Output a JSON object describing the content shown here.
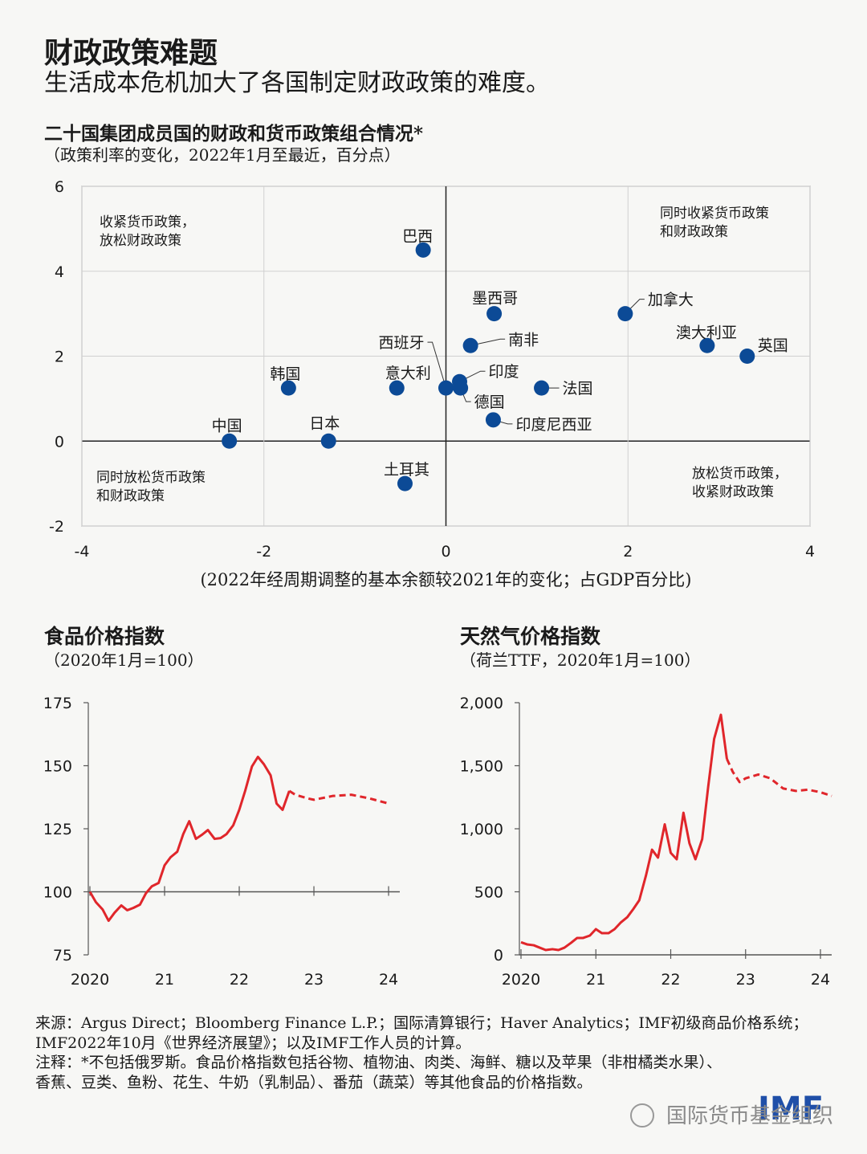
{
  "header": {
    "title": "财政政策难题",
    "subtitle": "生活成本危机加大了各国制定财政政策的难度。"
  },
  "chart_data": [
    {
      "type": "scatter",
      "title": "二十国集团成员国的财政和货币政策组合情况*",
      "subtitle": "（政策利率的变化，2022年1月至最近，百分点）",
      "x_label": "(2022年经周期调整的基本余额较2021年的变化；占GDP百分比)",
      "labels": [
        "巴西",
        "墨西哥",
        "加拿大",
        "南非",
        "澳大利亚",
        "英国",
        "西班牙",
        "意大利",
        "印度",
        "德国",
        "法国",
        "印度尼西亚",
        "韩国",
        "中国",
        "日本",
        "土耳其"
      ],
      "x": [
        -0.25,
        0.53,
        1.97,
        0.27,
        2.87,
        3.31,
        0,
        -0.54,
        0.15,
        0.16,
        1.05,
        0.52,
        -1.73,
        -2.38,
        -1.29,
        -0.45
      ],
      "values": [
        4.5,
        3.0,
        3.0,
        2.25,
        2.25,
        2.0,
        1.25,
        1.25,
        1.4,
        1.25,
        1.25,
        0.5,
        1.25,
        0,
        0,
        -1
      ],
      "color": "#0c4a96",
      "xlim": [
        -4,
        4
      ],
      "ylim": [
        -2,
        6
      ],
      "xticks": [
        -4,
        -2,
        0,
        2,
        4
      ],
      "yticks": [
        -2,
        0,
        2,
        4,
        6
      ],
      "grid": true,
      "quadrant_labels": [
        {
          "corner": "top-left",
          "lines": [
            "收紧货币政策，",
            "放松财政政策"
          ]
        },
        {
          "corner": "top-right",
          "lines": [
            "同时收紧货币政策",
            "和财政政策"
          ]
        },
        {
          "corner": "bottom-left",
          "lines": [
            "同时放松货币政策",
            "和财政政策"
          ]
        },
        {
          "corner": "bottom-right",
          "lines": [
            "放松货币政策，",
            "收紧财政政策"
          ]
        }
      ]
    },
    {
      "type": "line",
      "title": "食品价格指数",
      "subtitle": "（2020年1月=100）",
      "xlim": [
        2020,
        2024.15
      ],
      "ylim": [
        75,
        175
      ],
      "baseline": 100,
      "xticks": [
        2020,
        {
          "value": 2021,
          "label": "21"
        },
        {
          "value": 2022,
          "label": "22"
        },
        {
          "value": 2023,
          "label": "23"
        },
        {
          "value": 2024,
          "label": "24"
        }
      ],
      "yticks": [
        75,
        100,
        125,
        150,
        175
      ],
      "series": [
        {
          "color": "#e0262b",
          "style": "solid",
          "x": [
            2020,
            2020.08,
            2020.17,
            2020.25,
            2020.33,
            2020.42,
            2020.5,
            2020.58,
            2020.67,
            2020.75,
            2020.83,
            2020.92,
            2021,
            2021.08,
            2021.17,
            2021.25,
            2021.33,
            2021.42,
            2021.5,
            2021.58,
            2021.67,
            2021.75,
            2021.83,
            2021.92,
            2022,
            2022.08,
            2022.17,
            2022.25,
            2022.33,
            2022.42,
            2022.5,
            2022.58,
            2022.67
          ],
          "values": [
            100,
            95.9,
            93,
            88.5,
            91.7,
            94.6,
            92.7,
            93.6,
            94.9,
            99.4,
            102.2,
            103.5,
            110.5,
            113.7,
            115.9,
            122.9,
            128,
            121,
            122.6,
            124.5,
            121,
            121.3,
            122.9,
            126.4,
            132.5,
            140.1,
            149.7,
            153.5,
            150.6,
            146.2,
            135,
            132.5,
            140
          ]
        },
        {
          "color": "#e0262b",
          "style": "dashed",
          "x": [
            2022.67,
            2022.75,
            2022.92,
            2023,
            2023.25,
            2023.5,
            2023.75,
            2024
          ],
          "values": [
            140,
            138.5,
            137,
            136.5,
            138,
            138.5,
            137,
            135
          ]
        }
      ]
    },
    {
      "type": "line",
      "title": "天然气价格指数",
      "subtitle": "（荷兰TTF，2020年1月=100）",
      "xlim": [
        2020,
        2024.15
      ],
      "ylim": [
        0,
        2000
      ],
      "baseline": 0,
      "xticks": [
        2020,
        {
          "value": 2021,
          "label": "21"
        },
        {
          "value": 2022,
          "label": "22"
        },
        {
          "value": 2023,
          "label": "23"
        },
        {
          "value": 2024,
          "label": "24"
        }
      ],
      "yticks": [
        0,
        500,
        {
          "value": 1000,
          "label": "1,000"
        },
        {
          "value": 1500,
          "label": "1,500"
        },
        {
          "value": 2000,
          "label": "2,000"
        }
      ],
      "series": [
        {
          "color": "#e0262b",
          "style": "solid",
          "x": [
            2020,
            2020.08,
            2020.17,
            2020.25,
            2020.33,
            2020.42,
            2020.5,
            2020.58,
            2020.67,
            2020.75,
            2020.83,
            2020.92,
            2021,
            2021.08,
            2021.17,
            2021.25,
            2021.33,
            2021.42,
            2021.5,
            2021.58,
            2021.67,
            2021.75,
            2021.83,
            2021.92,
            2022,
            2022.08,
            2022.17,
            2022.25,
            2022.33,
            2022.42,
            2022.5,
            2022.58,
            2022.67,
            2022.75
          ],
          "values": [
            100,
            83,
            76,
            57,
            38,
            45,
            38,
            57,
            96,
            134,
            134,
            153,
            204,
            172,
            172,
            204,
            255,
            299,
            363,
            433,
            631,
            834,
            771,
            1035,
            809,
            758,
            1127,
            885,
            758,
            917,
            1331,
            1713,
            1904,
            1554
          ]
        },
        {
          "color": "#e0262b",
          "style": "dashed",
          "x": [
            2022.75,
            2022.83,
            2022.92,
            2023,
            2023.17,
            2023.33,
            2023.5,
            2023.67,
            2023.83,
            2024,
            2024.15
          ],
          "values": [
            1554,
            1450,
            1370,
            1400,
            1430,
            1400,
            1320,
            1300,
            1310,
            1290,
            1260
          ]
        }
      ]
    }
  ],
  "footer": {
    "source": [
      "来源：Argus Direct；Bloomberg Finance L.P.；国际清算银行；Haver Analytics；IMF初级商品价格系统；",
      "IMF2022年10月《世界经济展望》；以及IMF工作人员的计算。"
    ],
    "note": [
      "注释：*不包括俄罗斯。食品价格指数包括谷物、植物油、肉类、海鲜、糖以及苹果（非柑橘类水果）、",
      "香蕉、豆类、鱼粉、花生、牛奶（乳制品）、番茄（蔬菜）等其他食品的价格指数。"
    ],
    "logo": "IMF",
    "watermark": "国际货币基金组织"
  }
}
